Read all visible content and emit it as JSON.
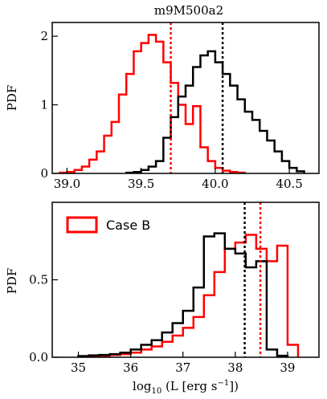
{
  "figure_title": "m9M500a2",
  "chart_data": [
    {
      "type": "histogram",
      "id": "top",
      "ylabel": "PDF",
      "xlabel": "",
      "xlim": [
        38.9,
        40.7
      ],
      "ylim": [
        0,
        2.2
      ],
      "xticks": [
        39.0,
        39.5,
        40.0,
        40.5
      ],
      "xtick_labels": [
        "39.0",
        "39.5",
        "40.0",
        "40.5"
      ],
      "yticks": [
        0,
        1,
        2
      ],
      "ytick_labels": [
        "0",
        "1",
        "2"
      ],
      "grid": false,
      "series": [
        {
          "color": "#ff0000",
          "edges": [
            38.95,
            39.0,
            39.05,
            39.1,
            39.15,
            39.2,
            39.25,
            39.3,
            39.35,
            39.4,
            39.45,
            39.5,
            39.55,
            39.6,
            39.65,
            39.7,
            39.75,
            39.8,
            39.85,
            39.9,
            39.95,
            40.0,
            40.05,
            40.1,
            40.15,
            40.2
          ],
          "values": [
            0.01,
            0.02,
            0.05,
            0.1,
            0.2,
            0.32,
            0.55,
            0.75,
            1.15,
            1.45,
            1.78,
            1.9,
            2.02,
            1.92,
            1.62,
            1.32,
            1.0,
            0.72,
            0.98,
            0.38,
            0.18,
            0.08,
            0.04,
            0.02,
            0.01
          ]
        },
        {
          "color": "#000000",
          "edges": [
            39.4,
            39.45,
            39.5,
            39.55,
            39.6,
            39.65,
            39.7,
            39.75,
            39.8,
            39.85,
            39.9,
            39.95,
            40.0,
            40.05,
            40.1,
            40.15,
            40.2,
            40.25,
            40.3,
            40.35,
            40.4,
            40.45,
            40.5,
            40.55,
            40.6
          ],
          "values": [
            0.01,
            0.02,
            0.05,
            0.1,
            0.18,
            0.52,
            0.82,
            1.12,
            1.28,
            1.55,
            1.72,
            1.78,
            1.62,
            1.45,
            1.28,
            1.08,
            0.9,
            0.78,
            0.62,
            0.48,
            0.32,
            0.18,
            0.08,
            0.03
          ]
        }
      ],
      "vlines": [
        {
          "x": 39.7,
          "color": "#ff0000"
        },
        {
          "x": 40.05,
          "color": "#000000"
        }
      ]
    },
    {
      "type": "histogram",
      "id": "bottom",
      "ylabel": "PDF",
      "xlabel": "log10 (L [erg s−1])",
      "xlim": [
        34.5,
        39.6
      ],
      "ylim": [
        0,
        1.0
      ],
      "xticks": [
        35,
        36,
        37,
        38,
        39
      ],
      "xtick_labels": [
        "35",
        "36",
        "37",
        "38",
        "39"
      ],
      "yticks": [
        0.0,
        0.5
      ],
      "ytick_labels": [
        "0.0",
        "0.5"
      ],
      "grid": false,
      "legend": {
        "location": "top-left",
        "entries": [
          {
            "label": "Case B",
            "color": "#ff0000"
          }
        ]
      },
      "series": [
        {
          "color": "#ff0000",
          "edges": [
            35.0,
            35.2,
            35.4,
            35.6,
            35.8,
            36.0,
            36.2,
            36.4,
            36.6,
            36.8,
            37.0,
            37.2,
            37.4,
            37.6,
            37.8,
            38.0,
            38.2,
            38.4,
            38.6,
            38.8,
            39.0,
            39.2
          ],
          "values": [
            0.005,
            0.008,
            0.01,
            0.015,
            0.02,
            0.03,
            0.05,
            0.07,
            0.1,
            0.14,
            0.19,
            0.26,
            0.4,
            0.55,
            0.7,
            0.74,
            0.79,
            0.7,
            0.62,
            0.72,
            0.08
          ]
        },
        {
          "color": "#000000",
          "edges": [
            35.0,
            35.2,
            35.4,
            35.6,
            35.8,
            36.0,
            36.2,
            36.4,
            36.6,
            36.8,
            37.0,
            37.2,
            37.4,
            37.6,
            37.8,
            38.0,
            38.2,
            38.4,
            38.6,
            38.8,
            39.0
          ],
          "values": [
            0.008,
            0.012,
            0.015,
            0.02,
            0.03,
            0.05,
            0.08,
            0.11,
            0.16,
            0.22,
            0.3,
            0.45,
            0.78,
            0.8,
            0.7,
            0.67,
            0.58,
            0.62,
            0.05,
            0.01
          ]
        }
      ],
      "vlines": [
        {
          "x": 38.48,
          "color": "#ff0000"
        },
        {
          "x": 38.18,
          "color": "#000000"
        }
      ]
    }
  ]
}
